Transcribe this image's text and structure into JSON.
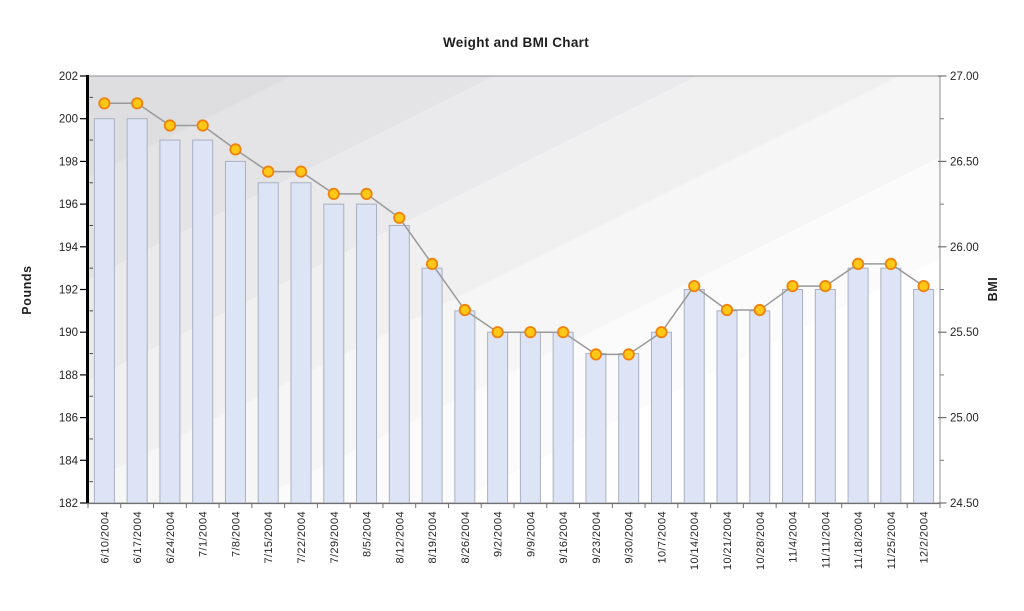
{
  "chart_data": {
    "type": "bar",
    "subtype": "bar-line-combo",
    "title": "Weight and BMI Chart",
    "categories": [
      "6/10/2004",
      "6/17/2004",
      "6/24/2004",
      "7/1/2004",
      "7/8/2004",
      "7/15/2004",
      "7/22/2004",
      "7/29/2004",
      "8/5/2004",
      "8/12/2004",
      "8/19/2004",
      "8/26/2004",
      "9/2/2004",
      "9/9/2004",
      "9/16/2004",
      "9/23/2004",
      "9/30/2004",
      "10/7/2004",
      "10/14/2004",
      "10/21/2004",
      "10/28/2004",
      "11/4/2004",
      "11/11/2004",
      "11/18/2004",
      "11/25/2004",
      "12/2/2004"
    ],
    "series": [
      {
        "name": "Weight",
        "type": "bar",
        "axis": "left",
        "values": [
          200,
          200,
          199,
          199,
          198,
          197,
          197,
          196,
          196,
          195,
          193,
          191,
          190,
          190,
          190,
          189,
          189,
          190,
          192,
          191,
          191,
          192,
          192,
          193,
          193,
          192
        ]
      },
      {
        "name": "BMI",
        "type": "line",
        "axis": "right",
        "values": [
          26.84,
          26.84,
          26.71,
          26.71,
          26.57,
          26.44,
          26.44,
          26.31,
          26.31,
          26.17,
          25.9,
          25.63,
          25.5,
          25.5,
          25.5,
          25.37,
          25.37,
          25.5,
          25.77,
          25.63,
          25.63,
          25.77,
          25.77,
          25.9,
          25.9,
          25.77
        ]
      }
    ],
    "left_axis": {
      "label": "Pounds",
      "min": 182,
      "max": 202,
      "step": 2,
      "minor_step": 1,
      "ticks": [
        "182",
        "184",
        "186",
        "188",
        "190",
        "192",
        "194",
        "196",
        "198",
        "200",
        "202"
      ]
    },
    "right_axis": {
      "label": "BMI",
      "min": 24.5,
      "max": 27.0,
      "step": 0.5,
      "minor_step": 0.25,
      "ticks": [
        "24.50",
        "25.00",
        "25.50",
        "26.00",
        "26.50",
        "27.00"
      ]
    },
    "legend": "none",
    "grid": "off",
    "colors": {
      "bar_fill": "#dde4f5",
      "bar_border": "#aab0c0",
      "line": "#999999",
      "marker_fill": "#ffc716",
      "marker_border": "#ef820d",
      "plot_border": "#8f8f8f",
      "bottom_axis": "#707070",
      "left_axis": "#000000",
      "bg_dark": "#dedee0",
      "bg_light": "#ffffff",
      "text": "#1f1f1f"
    }
  }
}
